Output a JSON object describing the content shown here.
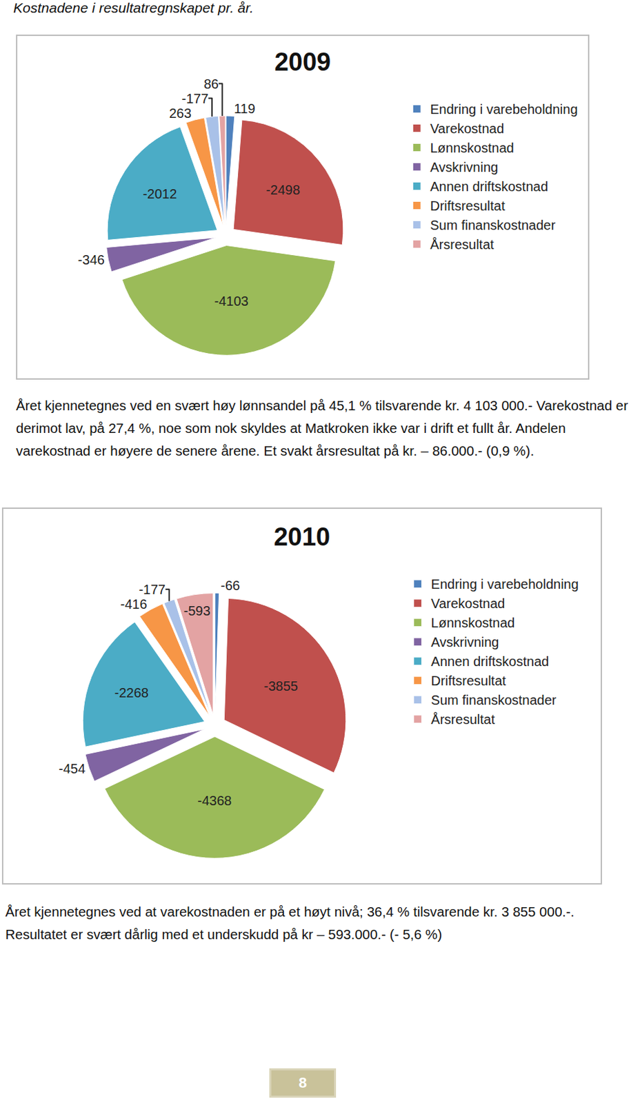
{
  "caption": "Kostnadene i resultatregnskapet pr. år.",
  "chart_data": [
    {
      "type": "pie",
      "title": "2009",
      "categories": [
        "Endring i varebeholdning",
        "Varekostnad",
        "Lønnskostnad",
        "Avskrivning",
        "Annen driftskostnad",
        "Driftsresultat",
        "Sum finanskostnader",
        "Årsresultat"
      ],
      "values": [
        119,
        -2498,
        -4103,
        -346,
        -2012,
        263,
        -177,
        86
      ],
      "colors": [
        "#4F81BD",
        "#C0504D",
        "#9BBB59",
        "#8064A2",
        "#4BACC6",
        "#F79646",
        "#A9C1E8",
        "#E3A3A3"
      ],
      "data_labels": true,
      "legend": "right"
    },
    {
      "type": "pie",
      "title": "2010",
      "categories": [
        "Endring i varebeholdning",
        "Varekostnad",
        "Lønnskostnad",
        "Avskrivning",
        "Annen driftskostnad",
        "Driftsresultat",
        "Sum finanskostnader",
        "Årsresultat"
      ],
      "values": [
        -66,
        -3855,
        -4368,
        -454,
        -2268,
        -416,
        -177,
        -593
      ],
      "colors": [
        "#4F81BD",
        "#C0504D",
        "#9BBB59",
        "#8064A2",
        "#4BACC6",
        "#F79646",
        "#A9C1E8",
        "#E3A3A3"
      ],
      "data_labels": true,
      "legend": "right"
    }
  ],
  "paragraphs": [
    "Året kjennetegnes ved en svært høy lønnsandel på 45,1 % tilsvarende kr. 4 103 000.- Varekostnad er derimot lav, på 27,4 %, noe som nok skyldes at Matkroken ikke var i drift et fullt år. Andelen varekostnad er høyere de senere årene. Et svakt årsresultat på kr. – 86.000.- (0,9 %).",
    "Året kjennetegnes ved at varekostnaden er på et høyt nivå; 36,4 % tilsvarende kr. 3 855 000.-. Resultatet er svært dårlig med et underskudd på kr – 593.000.- (- 5,6 %)"
  ],
  "page_number": "8"
}
